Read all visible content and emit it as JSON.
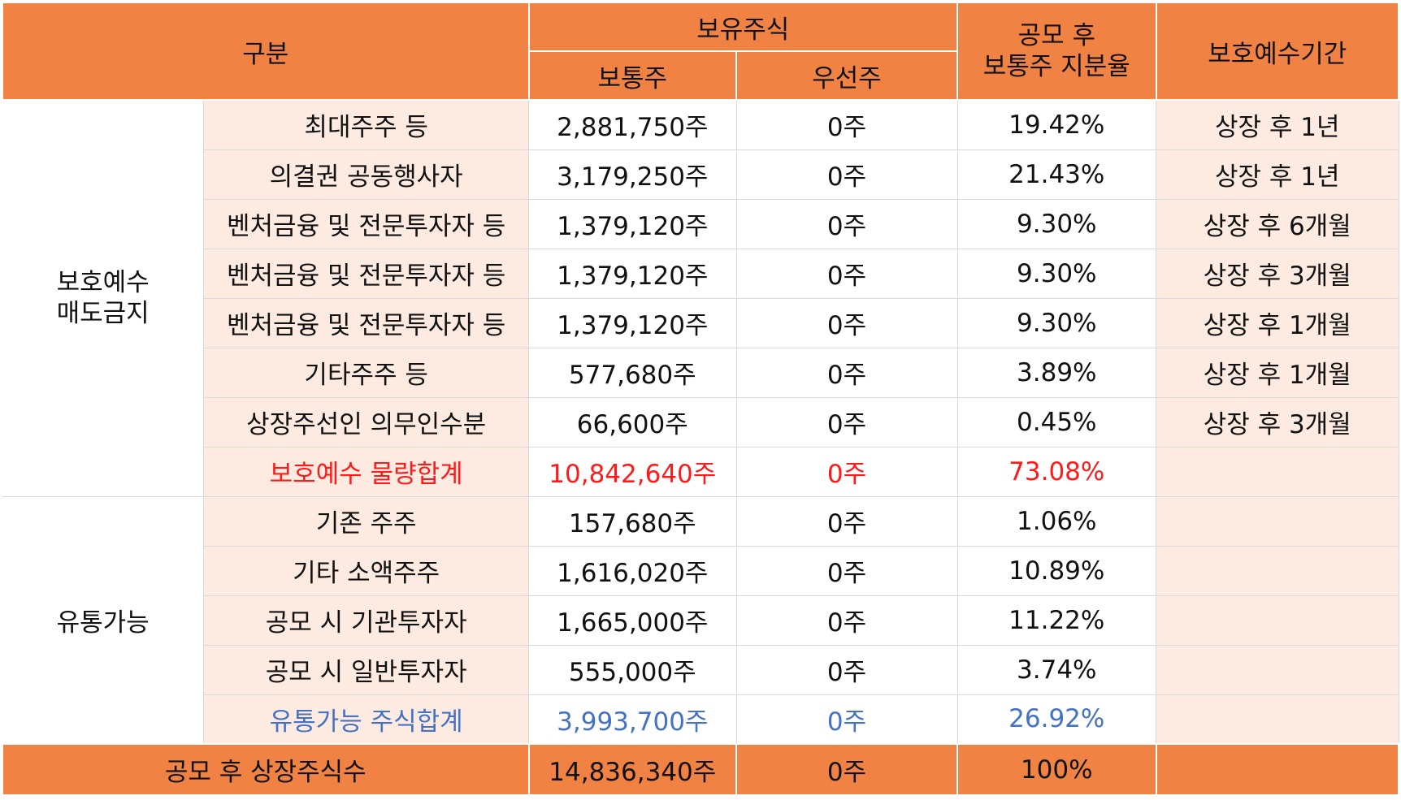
{
  "header": {
    "category": "구분",
    "holdings": "보유주식",
    "common": "보통주",
    "preferred": "우선주",
    "ratio_line1": "공모 후",
    "ratio_line2": "보통주 지분율",
    "lockup_period": "보호예수기간"
  },
  "groups": {
    "lockup": {
      "line1": "보호예수",
      "line2": "매도금지"
    },
    "tradable": "유통가능"
  },
  "lockup_rows": [
    {
      "name": "최대주주 등",
      "common": "2,881,750주",
      "preferred": "0주",
      "ratio": "19.42%",
      "period": "상장 후 1년"
    },
    {
      "name": "의결권 공동행사자",
      "common": "3,179,250주",
      "preferred": "0주",
      "ratio": "21.43%",
      "period": "상장 후 1년"
    },
    {
      "name": "벤처금융 및 전문투자자 등",
      "common": "1,379,120주",
      "preferred": "0주",
      "ratio": "9.30%",
      "period": "상장 후 6개월"
    },
    {
      "name": "벤처금융 및 전문투자자 등",
      "common": "1,379,120주",
      "preferred": "0주",
      "ratio": "9.30%",
      "period": "상장 후 3개월"
    },
    {
      "name": "벤처금융 및 전문투자자 등",
      "common": "1,379,120주",
      "preferred": "0주",
      "ratio": "9.30%",
      "period": "상장 후 1개월"
    },
    {
      "name": "기타주주 등",
      "common": "577,680주",
      "preferred": "0주",
      "ratio": "3.89%",
      "period": "상장 후 1개월"
    },
    {
      "name": "상장주선인 의무인수분",
      "common": "66,600주",
      "preferred": "0주",
      "ratio": "0.45%",
      "period": "상장 후 3개월"
    }
  ],
  "lockup_total": {
    "name": "보호예수 물량합계",
    "common": "10,842,640주",
    "preferred": "0주",
    "ratio": "73.08%",
    "period": ""
  },
  "tradable_rows": [
    {
      "name": "기존 주주",
      "common": "157,680주",
      "preferred": "0주",
      "ratio": "1.06%",
      "period": ""
    },
    {
      "name": "기타 소액주주",
      "common": "1,616,020주",
      "preferred": "0주",
      "ratio": "10.89%",
      "period": ""
    },
    {
      "name": "공모 시 기관투자자",
      "common": "1,665,000주",
      "preferred": "0주",
      "ratio": "11.22%",
      "period": ""
    },
    {
      "name": "공모 시 일반투자자",
      "common": "555,000주",
      "preferred": "0주",
      "ratio": "3.74%",
      "period": ""
    }
  ],
  "tradable_total": {
    "name": "유통가능 주식합계",
    "common": "3,993,700주",
    "preferred": "0주",
    "ratio": "26.92%",
    "period": ""
  },
  "footer": {
    "label": "공모 후 상장주식수",
    "common": "14,836,340주",
    "preferred": "0주",
    "ratio": "100%",
    "period": ""
  },
  "colors": {
    "header_bg": "#f08243",
    "sub_bg": "#fdebe2",
    "lockup_total_text": "#ff1a1a",
    "tradable_total_text": "#4472c4"
  }
}
